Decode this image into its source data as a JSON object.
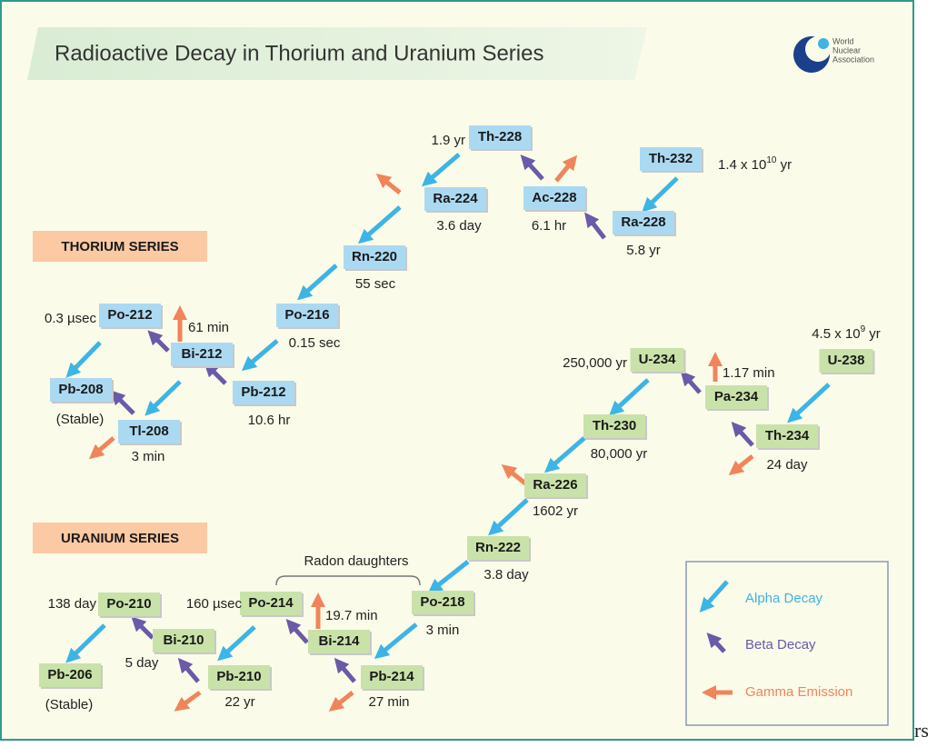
{
  "title": "Radioactive Decay in Thorium and Uranium Series",
  "logo": {
    "lines": [
      "World",
      "Nuclear",
      "Association"
    ]
  },
  "thorium": {
    "heading": "THORIUM SERIES",
    "nodes": [
      {
        "label": "Th-232",
        "time": {
          "text": "1.4 x 10",
          "sup": "10",
          "unit": " yr"
        }
      },
      {
        "label": "Ra-228",
        "time": "5.8 yr"
      },
      {
        "label": "Ac-228",
        "time": "6.1 hr"
      },
      {
        "label": "Th-228",
        "time": "1.9 yr"
      },
      {
        "label": "Ra-224",
        "time": "3.6 day"
      },
      {
        "label": "Rn-220",
        "time": "55 sec"
      },
      {
        "label": "Po-216",
        "time": "0.15 sec"
      },
      {
        "label": "Pb-212",
        "time": "10.6 hr"
      },
      {
        "label": "Bi-212",
        "time": "61 min"
      },
      {
        "label": "Po-212",
        "time": "0.3 µsec"
      },
      {
        "label": "Pb-208",
        "time": "(Stable)"
      },
      {
        "label": "Tl-208",
        "time": "3 min"
      }
    ]
  },
  "uranium": {
    "heading": "URANIUM SERIES",
    "nodes": [
      {
        "label": "U-238",
        "time": {
          "text": "4.5 x 10",
          "sup": "9",
          "unit": " yr"
        }
      },
      {
        "label": "Th-234",
        "time": "24 day"
      },
      {
        "label": "Pa-234",
        "time": "1.17 min"
      },
      {
        "label": "U-234",
        "time": "250,000 yr"
      },
      {
        "label": "Th-230",
        "time": "80,000 yr"
      },
      {
        "label": "Ra-226",
        "time": "1602 yr"
      },
      {
        "label": "Rn-222",
        "time": "3.8 day"
      },
      {
        "label": "Po-218",
        "time": "3 min"
      },
      {
        "label": "Bi-214",
        "time": "19.7 min"
      },
      {
        "label": "Pb-214",
        "time": "27 min"
      },
      {
        "label": "Po-214",
        "time": "160 µsec"
      },
      {
        "label": "Bi-210",
        "time": "5 day"
      },
      {
        "label": "Po-210",
        "time": "138 day"
      },
      {
        "label": "Pb-210",
        "time": "22 yr"
      },
      {
        "label": "Pb-206",
        "time": "(Stable)"
      }
    ]
  },
  "annotation": "Radon daughters",
  "legend": [
    "Alpha Decay",
    "Beta Decay",
    "Gamma Emission"
  ],
  "fragment": "rs"
}
